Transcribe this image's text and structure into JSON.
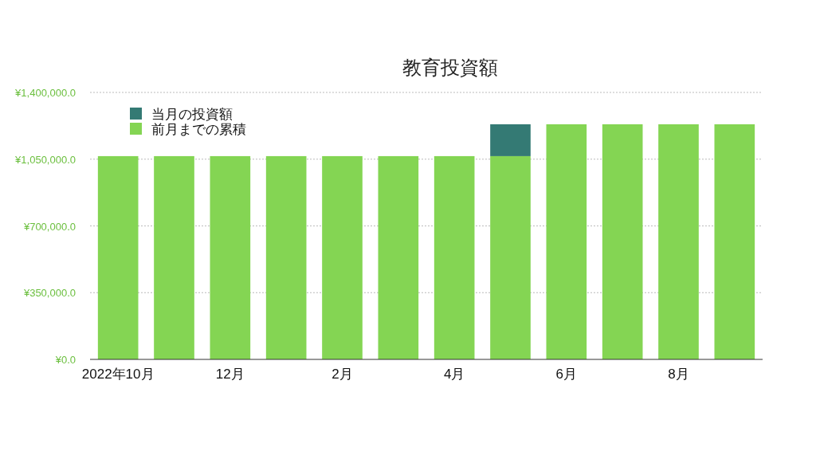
{
  "chart_data": {
    "type": "bar",
    "title": "教育投資額",
    "categories": [
      "2022年10月",
      null,
      "12月",
      null,
      "2月",
      null,
      "4月",
      null,
      "6月",
      null,
      "8月",
      null
    ],
    "stacked": true,
    "series": [
      {
        "name": "前月までの累積",
        "color": "#84d553",
        "values": [
          1066000,
          1066000,
          1066000,
          1066000,
          1066000,
          1066000,
          1066000,
          1066000,
          1233000,
          1233000,
          1233000,
          1233000
        ]
      },
      {
        "name": "当月の投資額",
        "color": "#347a74",
        "values": [
          0,
          0,
          0,
          0,
          0,
          0,
          0,
          167000,
          0,
          0,
          0,
          0
        ]
      }
    ],
    "ylim": [
      0,
      1400000
    ],
    "yticks": [
      {
        "value": 0,
        "label": "¥0.0"
      },
      {
        "value": 350000,
        "label": "¥350,000.0"
      },
      {
        "value": 700000,
        "label": "¥700,000.0"
      },
      {
        "value": 1050000,
        "label": "¥1,050,000.0"
      },
      {
        "value": 1400000,
        "label": "¥1,400,000.0"
      }
    ],
    "grid": "y",
    "legend": "top left"
  }
}
